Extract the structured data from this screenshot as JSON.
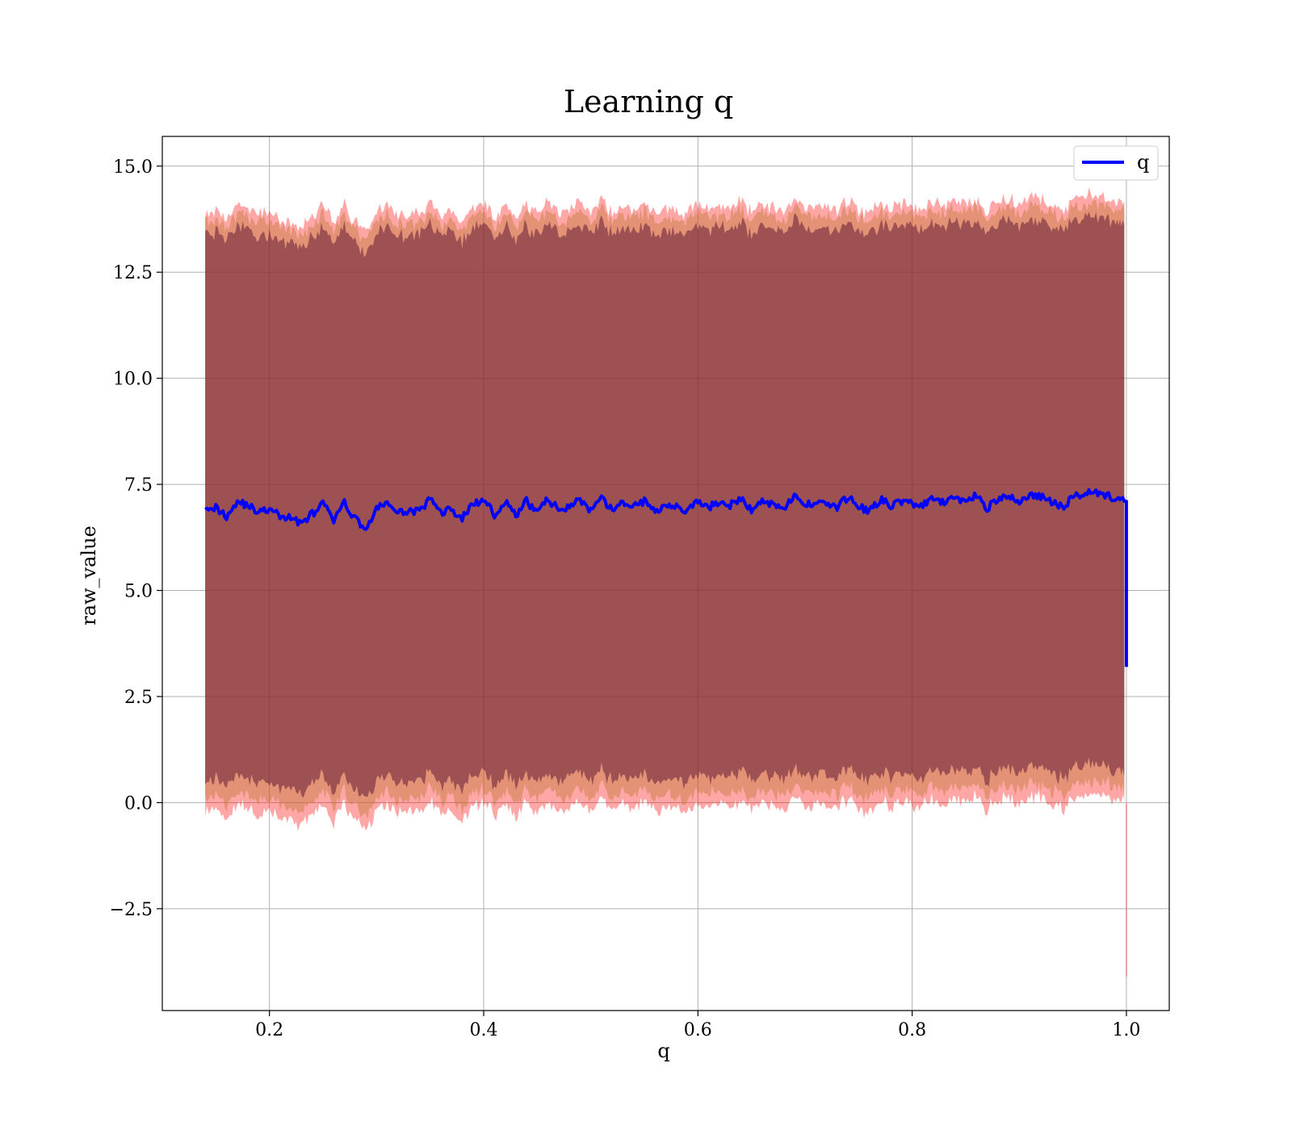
{
  "chart_data": {
    "type": "line",
    "title": "Learning q",
    "xlabel": "q",
    "ylabel": "raw_value",
    "xlim": [
      0.1,
      1.04
    ],
    "ylim": [
      -4.9,
      15.7
    ],
    "xticks": [
      0.2,
      0.4,
      0.6,
      0.8,
      1.0
    ],
    "xtick_labels": [
      "0.2",
      "0.4",
      "0.6",
      "0.8",
      "1.0"
    ],
    "yticks": [
      -2.5,
      0.0,
      2.5,
      5.0,
      7.5,
      10.0,
      12.5,
      15.0
    ],
    "ytick_labels": [
      "−2.5",
      "0.0",
      "2.5",
      "5.0",
      "7.5",
      "10.0",
      "12.5",
      "15.0"
    ],
    "grid": true,
    "legend_position": "top-right",
    "series": [
      {
        "name": "q",
        "color": "#0000ff",
        "x": [
          0.14,
          0.15,
          0.16,
          0.17,
          0.18,
          0.19,
          0.2,
          0.21,
          0.22,
          0.23,
          0.24,
          0.25,
          0.26,
          0.27,
          0.28,
          0.29,
          0.3,
          0.31,
          0.32,
          0.33,
          0.34,
          0.35,
          0.36,
          0.37,
          0.38,
          0.39,
          0.4,
          0.41,
          0.42,
          0.43,
          0.44,
          0.45,
          0.46,
          0.47,
          0.48,
          0.49,
          0.5,
          0.51,
          0.52,
          0.53,
          0.54,
          0.55,
          0.56,
          0.57,
          0.58,
          0.59,
          0.6,
          0.61,
          0.62,
          0.63,
          0.64,
          0.65,
          0.66,
          0.67,
          0.68,
          0.69,
          0.7,
          0.71,
          0.72,
          0.73,
          0.74,
          0.75,
          0.76,
          0.77,
          0.78,
          0.79,
          0.8,
          0.81,
          0.82,
          0.83,
          0.84,
          0.85,
          0.86,
          0.87,
          0.88,
          0.89,
          0.9,
          0.91,
          0.92,
          0.93,
          0.94,
          0.95,
          0.96,
          0.97,
          0.98,
          0.99,
          0.998,
          1.0
        ],
        "values": [
          7.0,
          6.95,
          6.75,
          7.1,
          7.0,
          6.85,
          6.9,
          6.75,
          6.7,
          6.6,
          6.8,
          7.05,
          6.65,
          7.05,
          6.7,
          6.45,
          6.9,
          7.1,
          6.8,
          6.9,
          6.85,
          7.15,
          6.85,
          6.9,
          6.7,
          7.05,
          7.1,
          6.8,
          7.1,
          6.75,
          7.1,
          6.85,
          7.15,
          6.9,
          7.0,
          7.15,
          6.85,
          7.15,
          6.9,
          7.05,
          7.0,
          7.1,
          6.85,
          7.05,
          7.0,
          6.85,
          7.1,
          6.95,
          7.1,
          7.0,
          7.15,
          6.9,
          7.1,
          7.05,
          6.95,
          7.2,
          7.0,
          7.1,
          7.05,
          6.95,
          7.2,
          7.0,
          6.85,
          7.15,
          7.0,
          7.1,
          7.05,
          7.0,
          7.15,
          7.05,
          7.2,
          7.1,
          7.25,
          6.95,
          7.15,
          7.2,
          7.1,
          7.25,
          7.2,
          7.1,
          6.95,
          7.2,
          7.3,
          7.35,
          7.25,
          7.15,
          7.1,
          3.2
        ]
      }
    ],
    "bands": [
      {
        "color": "#ff0000",
        "alpha": 0.35,
        "offset_upper": 7.0,
        "offset_lower": 7.1
      },
      {
        "color": "#c07a3a",
        "alpha": 0.45,
        "offset_upper": 6.8,
        "offset_lower": 6.8
      },
      {
        "color": "#5a1030",
        "alpha": 0.5,
        "offset_upper": 6.5,
        "offset_lower": 6.4
      }
    ]
  }
}
